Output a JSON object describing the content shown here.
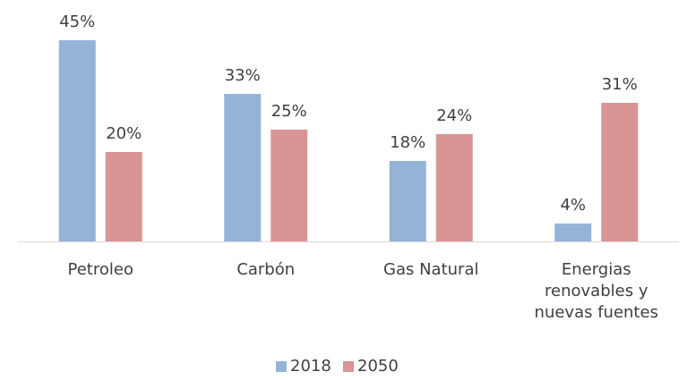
{
  "chart_data": {
    "type": "bar",
    "categories": [
      "Petroleo",
      "Carbón",
      "Gas Natural",
      "Energias renovables y nuevas fuentes"
    ],
    "series": [
      {
        "name": "2018",
        "color": "#95b3d7",
        "values": [
          45,
          33,
          18,
          4
        ],
        "value_labels": [
          "45%",
          "33%",
          "18%",
          "4%"
        ]
      },
      {
        "name": "2050",
        "color": "#d99594",
        "values": [
          20,
          25,
          24,
          31
        ],
        "value_labels": [
          "20%",
          "25%",
          "24%",
          "31%"
        ]
      }
    ],
    "legend": "bottom"
  }
}
